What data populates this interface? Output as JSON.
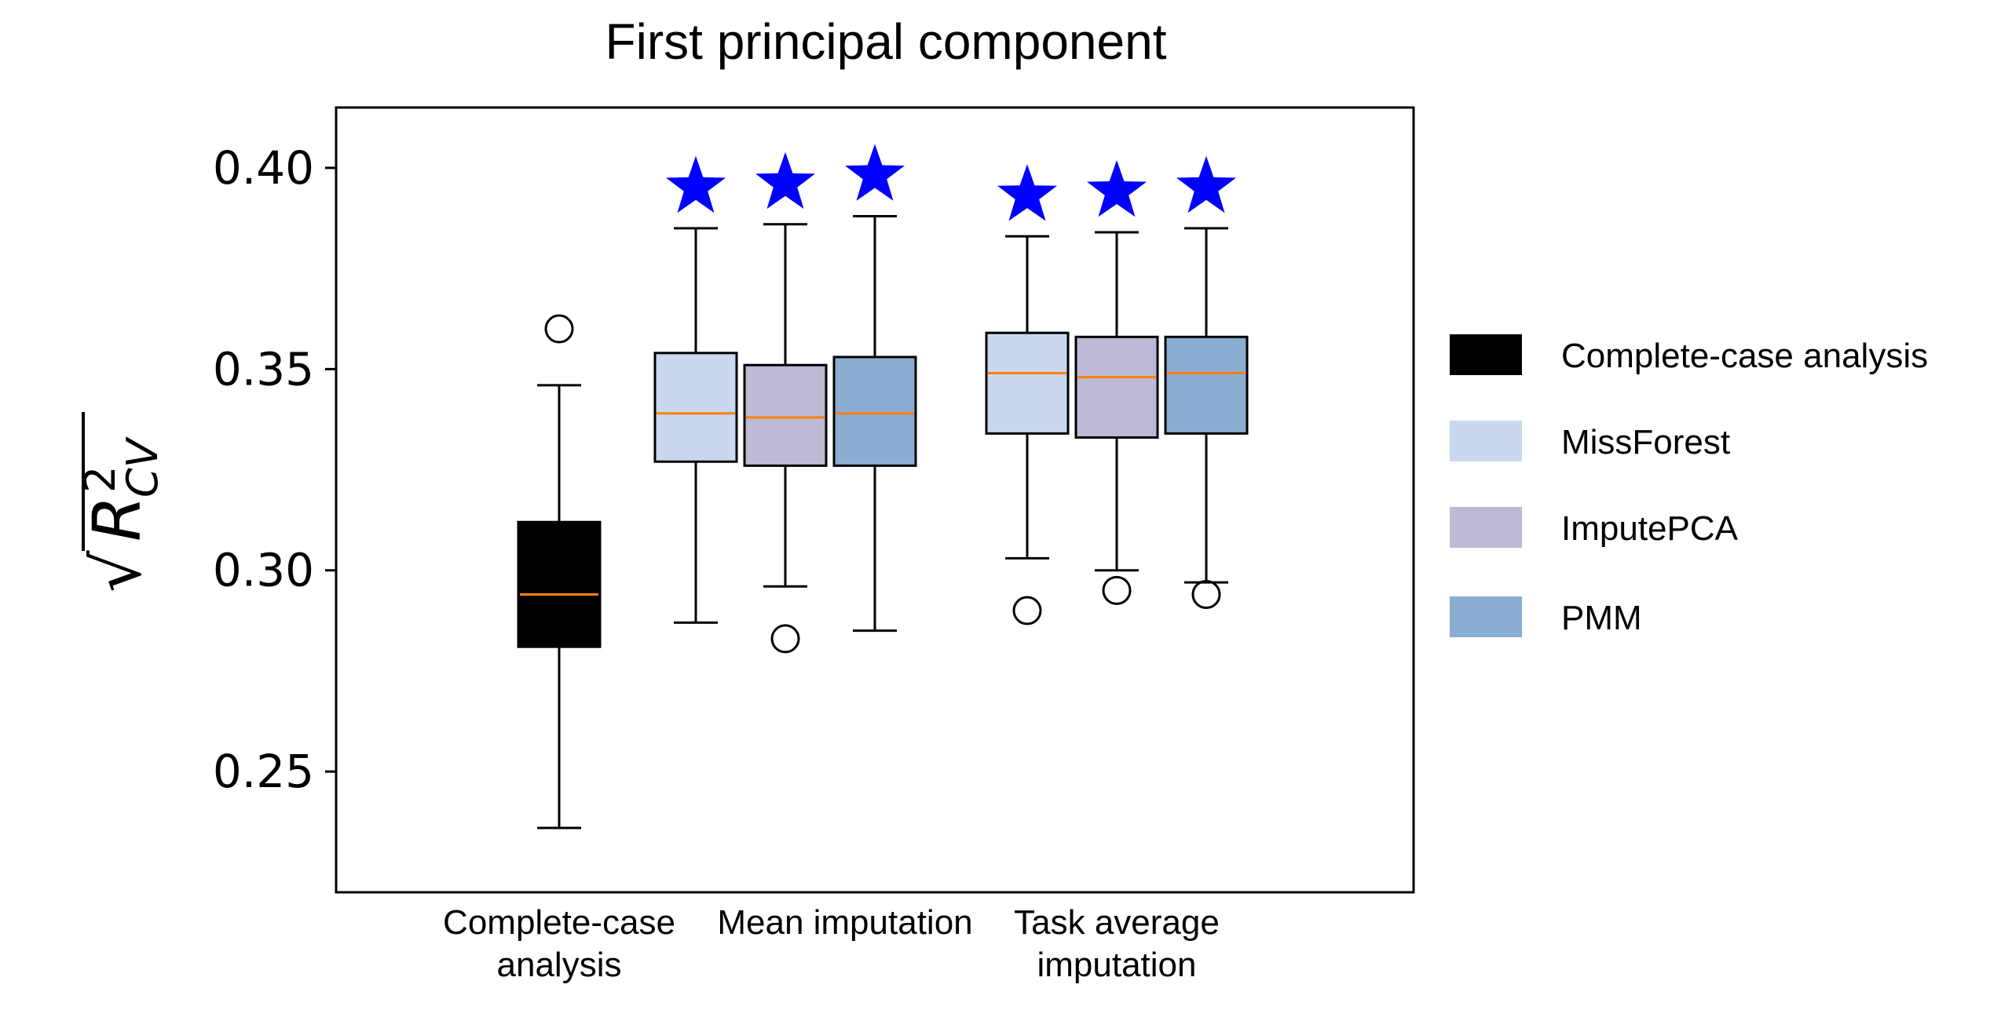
{
  "chart_data": {
    "type": "box",
    "title": "First principal component",
    "ylabel": "√R²_CV",
    "ylabel_parts": {
      "root": "√",
      "base": "R",
      "sup": "2",
      "sub": "CV"
    },
    "ylim": [
      0.22,
      0.415
    ],
    "yticks": [
      0.25,
      0.3,
      0.35,
      0.4
    ],
    "ytick_labels": [
      "0.25",
      "0.30",
      "0.35",
      "0.40"
    ],
    "grid": false,
    "legend_position": "right",
    "categories": [
      {
        "label_lines": [
          "Complete-case",
          "analysis"
        ]
      },
      {
        "label_lines": [
          "Mean imputation"
        ]
      },
      {
        "label_lines": [
          "Task average",
          "imputation"
        ]
      }
    ],
    "series": [
      {
        "name": "Complete-case analysis",
        "color": "#000000"
      },
      {
        "name": "MissForest",
        "color": "#c9d8ee"
      },
      {
        "name": "ImputePCA",
        "color": "#bcbad4"
      },
      {
        "name": "PMM",
        "color": "#8aaed1"
      }
    ],
    "median_color": "#ff7f0e",
    "star_color": "#0000ff",
    "boxes": [
      {
        "category": 0,
        "series": 0,
        "whislo": 0.236,
        "q1": 0.281,
        "median": 0.294,
        "q3": 0.312,
        "whishi": 0.346,
        "fliers": [
          0.36
        ],
        "significant": false
      },
      {
        "category": 1,
        "series": 1,
        "whislo": 0.287,
        "q1": 0.327,
        "median": 0.339,
        "q3": 0.354,
        "whishi": 0.385,
        "fliers": [],
        "significant": true
      },
      {
        "category": 1,
        "series": 2,
        "whislo": 0.296,
        "q1": 0.326,
        "median": 0.338,
        "q3": 0.351,
        "whishi": 0.386,
        "fliers": [
          0.283
        ],
        "significant": true
      },
      {
        "category": 1,
        "series": 3,
        "whislo": 0.285,
        "q1": 0.326,
        "median": 0.339,
        "q3": 0.353,
        "whishi": 0.388,
        "fliers": [],
        "significant": true
      },
      {
        "category": 2,
        "series": 1,
        "whislo": 0.303,
        "q1": 0.334,
        "median": 0.349,
        "q3": 0.359,
        "whishi": 0.383,
        "fliers": [
          0.29
        ],
        "significant": true
      },
      {
        "category": 2,
        "series": 2,
        "whislo": 0.3,
        "q1": 0.333,
        "median": 0.348,
        "q3": 0.358,
        "whishi": 0.384,
        "fliers": [
          0.295
        ],
        "significant": true
      },
      {
        "category": 2,
        "series": 3,
        "whislo": 0.297,
        "q1": 0.334,
        "median": 0.349,
        "q3": 0.358,
        "whishi": 0.385,
        "fliers": [
          0.294
        ],
        "significant": true
      }
    ]
  }
}
